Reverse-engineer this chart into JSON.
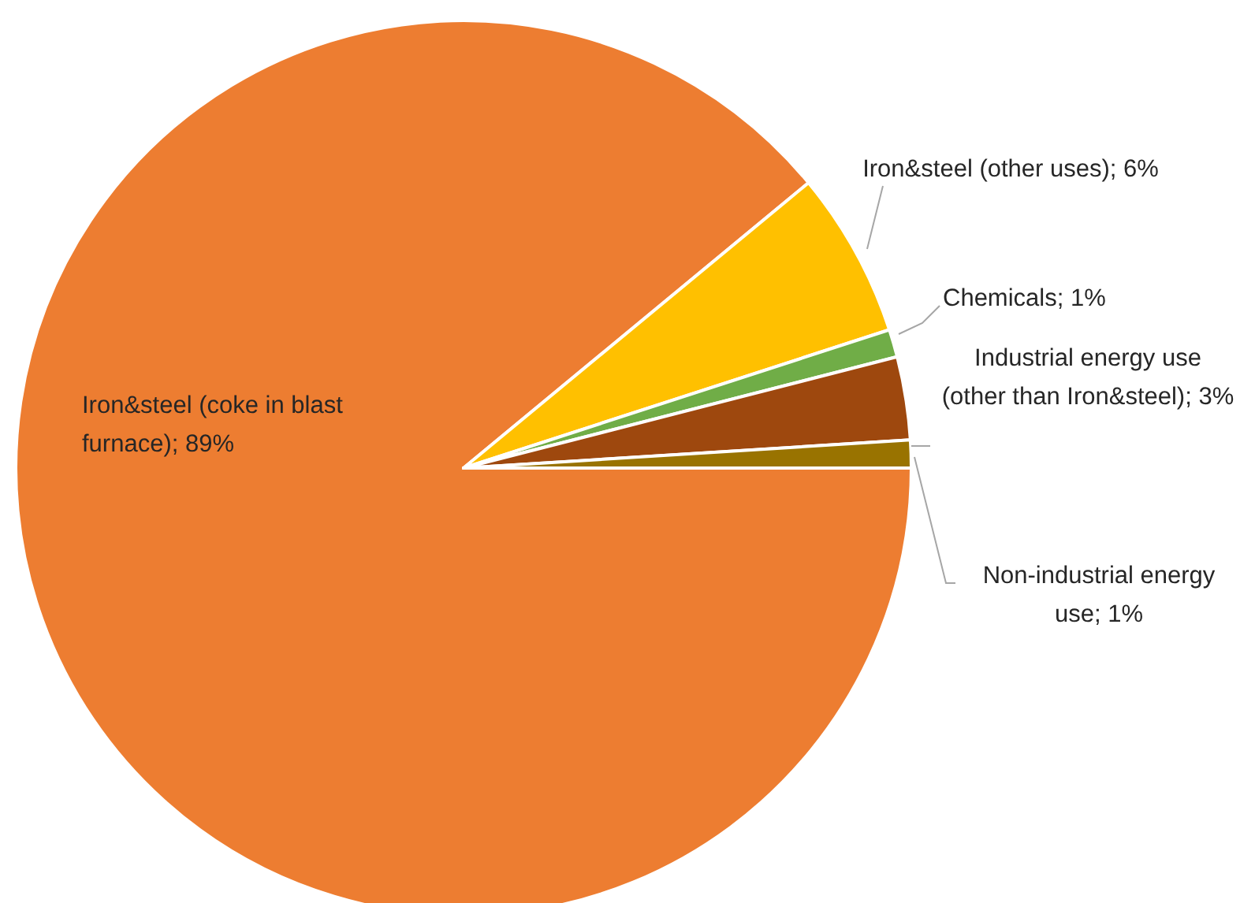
{
  "chart_data": {
    "type": "pie",
    "categories": [
      "Iron&steel (coke in blast furnace)",
      "Iron&steel (other uses)",
      "Chemicals",
      "Industrial energy use (other than Iron&steel)",
      "Non-industrial energy use"
    ],
    "values": [
      89,
      6,
      1,
      3,
      1
    ],
    "value_labels": [
      "89%",
      "6%",
      "1%",
      "3%",
      "1%"
    ],
    "colors": [
      "#ed7d31",
      "#ffc000",
      "#70ad47",
      "#9e480e",
      "#997300"
    ],
    "legend": false
  }
}
